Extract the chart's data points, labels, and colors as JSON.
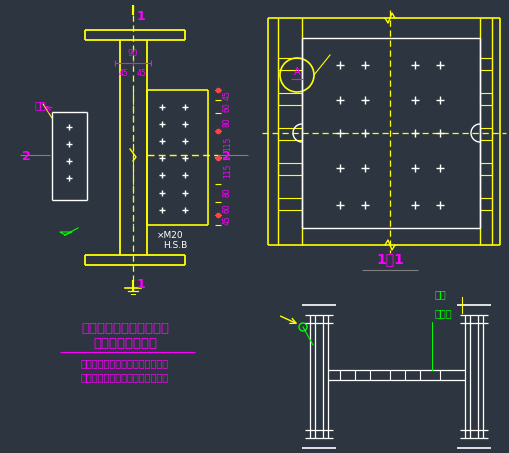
{
  "bg_color": "#2d3640",
  "yellow": "#ffff00",
  "white": "#ffffff",
  "magenta": "#ff00ff",
  "green": "#00ff00",
  "gray": "#808080",
  "title1": "工字形截面柱的工地拼接",
  "title2": "及耳板的设置构造",
  "subtitle1": "翼缘采用全熔透的坡口对接焊缝连",
  "subtitle2": "接，腹板采用摩擦型高强螺栓连接",
  "label_11": "1－1",
  "label_erban": "耳板",
  "label_lianjieban": "连接板",
  "bolt_label": "×M20",
  "hsb_label": "H.S.B"
}
